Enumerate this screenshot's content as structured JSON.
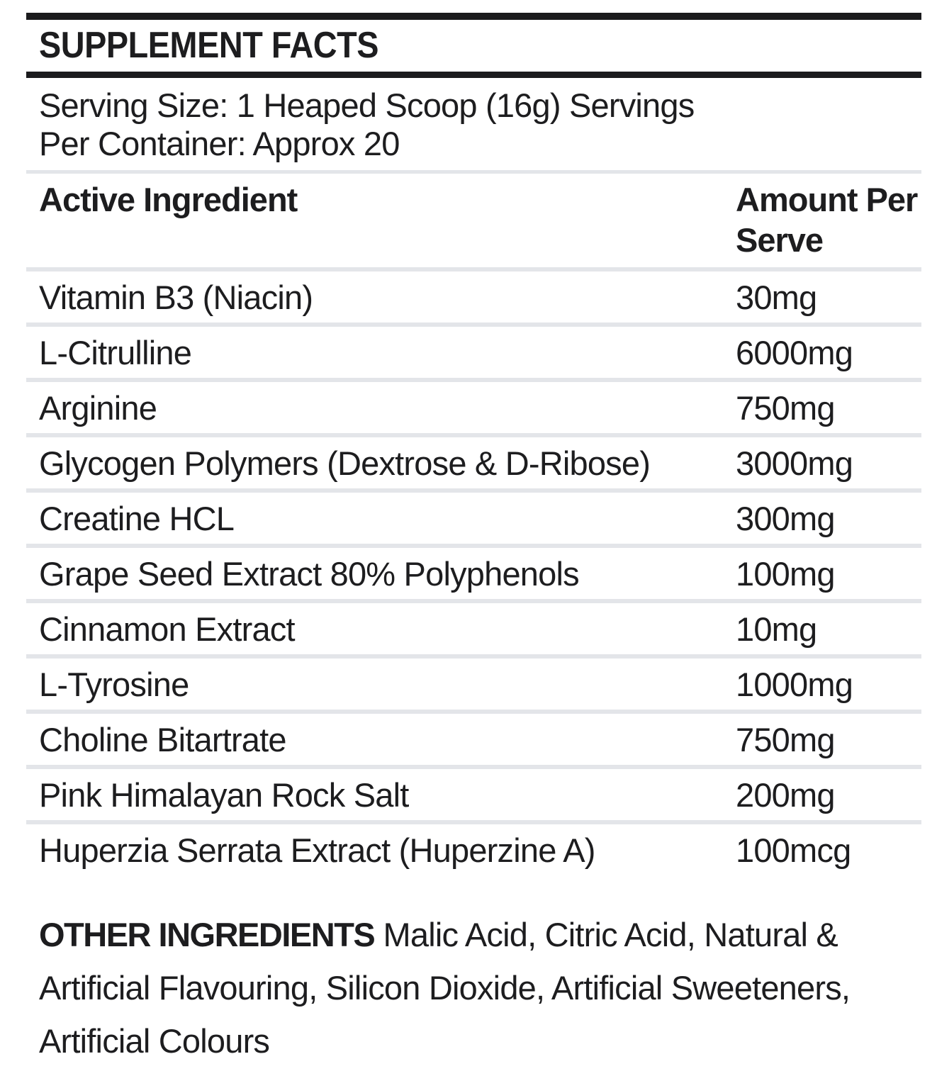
{
  "panel": {
    "title": "SUPPLEMENT FACTS",
    "serving": {
      "line1": "Serving Size: 1 Heaped Scoop (16g) Servings",
      "line2": "Per Container: Approx 20"
    }
  },
  "table": {
    "col1_header": "Active Ingredient",
    "col2_header": "Amount Per Serve",
    "rows": [
      {
        "name": "Vitamin B3 (Niacin)",
        "amount": "30mg"
      },
      {
        "name": "L-Citrulline",
        "amount": "6000mg"
      },
      {
        "name": "Arginine",
        "amount": "750mg"
      },
      {
        "name": "Glycogen Polymers (Dextrose & D-Ribose)",
        "amount": "3000mg"
      },
      {
        "name": "Creatine HCL",
        "amount": "300mg"
      },
      {
        "name": "Grape Seed Extract 80% Polyphenols",
        "amount": "100mg"
      },
      {
        "name": "Cinnamon Extract",
        "amount": "10mg"
      },
      {
        "name": "L-Tyrosine",
        "amount": "1000mg"
      },
      {
        "name": "Choline Bitartrate",
        "amount": "750mg"
      },
      {
        "name": "Pink Himalayan Rock Salt",
        "amount": "200mg"
      },
      {
        "name": "Huperzia Serrata Extract (Huperzine A)",
        "amount": "100mcg"
      }
    ]
  },
  "other_ingredients": {
    "label": "OTHER INGREDIENTS",
    "line1_rest": " Malic Acid, Citric Acid, Natural &",
    "line2": "Artificial Flavouring, Silicon Dioxide, Artificial Sweeteners,",
    "line3": "Artificial Colours"
  },
  "colors": {
    "text": "#1d1d1f",
    "rule": "#1b1b1d",
    "divider": "#e3e5e9",
    "background": "#ffffff"
  }
}
